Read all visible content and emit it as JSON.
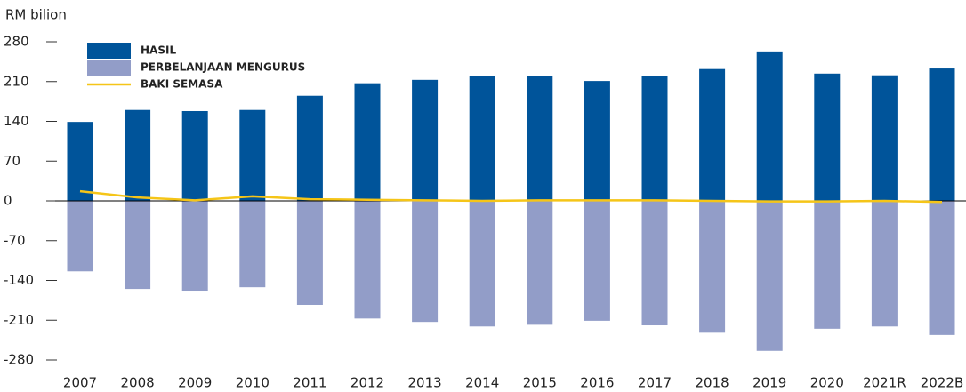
{
  "chart_data": {
    "type": "bar",
    "y_label": "RM bilion",
    "categories": [
      "2007",
      "2008",
      "2009",
      "2010",
      "2011",
      "2012",
      "2013",
      "2014",
      "2015",
      "2016",
      "2017",
      "2018",
      "2019",
      "2020",
      "2021R",
      "2022B"
    ],
    "series": [
      {
        "name": "HASIL",
        "color": "#00549a",
        "type": "bar",
        "values": [
          139,
          160,
          158,
          160,
          185,
          207,
          213,
          219,
          219,
          211,
          219,
          232,
          263,
          224,
          221,
          233
        ]
      },
      {
        "name": "PERBELANJAAN MENGURUS",
        "color": "#929dc8",
        "type": "bar",
        "values": [
          -124,
          -155,
          -158,
          -152,
          -183,
          -207,
          -213,
          -221,
          -218,
          -211,
          -219,
          -232,
          -264,
          -225,
          -221,
          -236
        ]
      },
      {
        "name": "BAKI SEMASA",
        "color": "#f5c518",
        "type": "line",
        "values": [
          17,
          6,
          1,
          8,
          3,
          2,
          1,
          0,
          1,
          1,
          1,
          0,
          -1,
          -1,
          0,
          -2
        ]
      }
    ],
    "ylim": [
      -280,
      280
    ],
    "yticks": [
      -280,
      -210,
      -140,
      -70,
      0,
      70,
      140,
      210,
      280
    ]
  }
}
